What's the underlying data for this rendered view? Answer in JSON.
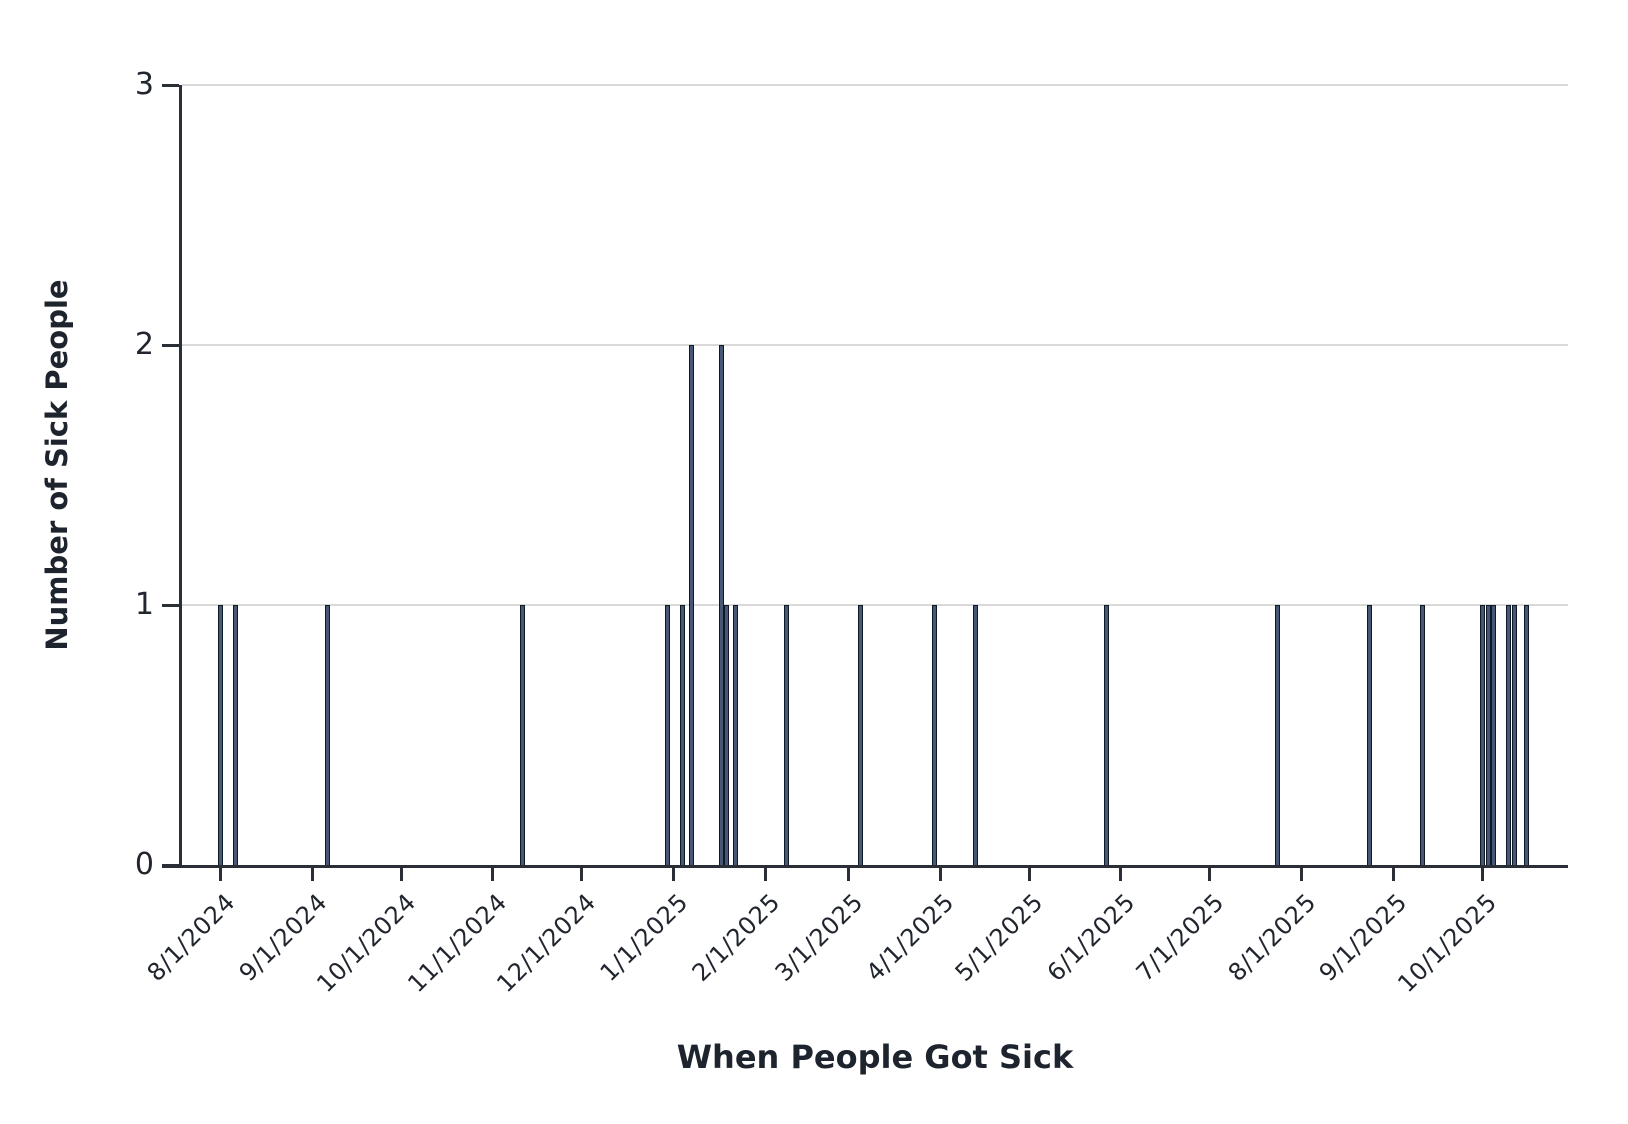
{
  "chart_data": {
    "type": "bar",
    "title": "",
    "xlabel": "When People Got Sick",
    "ylabel": "Number of Sick People",
    "ylim": [
      0,
      3
    ],
    "yticks": [
      0,
      1,
      2,
      3
    ],
    "grid": "horizontal-light-gray",
    "legend": "none",
    "x_axis_domain_start": "2024-07-19",
    "x_axis_domain_end": "2025-10-30",
    "xticks": [
      {
        "label": "8/1/2024",
        "date": "2024-08-01"
      },
      {
        "label": "9/1/2024",
        "date": "2024-09-01"
      },
      {
        "label": "10/1/2024",
        "date": "2024-10-01"
      },
      {
        "label": "11/1/2024",
        "date": "2024-11-01"
      },
      {
        "label": "12/1/2024",
        "date": "2024-12-01"
      },
      {
        "label": "1/1/2025",
        "date": "2025-01-01"
      },
      {
        "label": "2/1/2025",
        "date": "2025-02-01"
      },
      {
        "label": "3/1/2025",
        "date": "2025-03-01"
      },
      {
        "label": "4/1/2025",
        "date": "2025-04-01"
      },
      {
        "label": "5/1/2025",
        "date": "2025-05-01"
      },
      {
        "label": "6/1/2025",
        "date": "2025-06-01"
      },
      {
        "label": "7/1/2025",
        "date": "2025-07-01"
      },
      {
        "label": "8/1/2025",
        "date": "2025-08-01"
      },
      {
        "label": "9/1/2025",
        "date": "2025-09-01"
      },
      {
        "label": "10/1/2025",
        "date": "2025-10-01"
      }
    ],
    "points": [
      {
        "date": "2024-08-01",
        "count": 1
      },
      {
        "date": "2024-08-06",
        "count": 1
      },
      {
        "date": "2024-09-06",
        "count": 1
      },
      {
        "date": "2024-11-11",
        "count": 1
      },
      {
        "date": "2024-12-30",
        "count": 1
      },
      {
        "date": "2025-01-04",
        "count": 1
      },
      {
        "date": "2025-01-07",
        "count": 2
      },
      {
        "date": "2025-01-17",
        "count": 2
      },
      {
        "date": "2025-01-19",
        "count": 1
      },
      {
        "date": "2025-01-22",
        "count": 1
      },
      {
        "date": "2025-02-08",
        "count": 1
      },
      {
        "date": "2025-03-05",
        "count": 1
      },
      {
        "date": "2025-03-30",
        "count": 1
      },
      {
        "date": "2025-04-13",
        "count": 1
      },
      {
        "date": "2025-05-27",
        "count": 1
      },
      {
        "date": "2025-07-24",
        "count": 1
      },
      {
        "date": "2025-08-24",
        "count": 1
      },
      {
        "date": "2025-09-11",
        "count": 1
      },
      {
        "date": "2025-10-01",
        "count": 1
      },
      {
        "date": "2025-10-03",
        "count": 1
      },
      {
        "date": "2025-10-05",
        "count": 1
      },
      {
        "date": "2025-10-10",
        "count": 1
      },
      {
        "date": "2025-10-12",
        "count": 1
      },
      {
        "date": "2025-10-16",
        "count": 1
      }
    ]
  },
  "colors": {
    "background": "#ffffff",
    "bar_fill": "#465873",
    "bar_stroke": "#0f1826",
    "axis": "#2a2e36",
    "gridline": "#d9d9d9",
    "tick_text": "#21262e",
    "title_text": "#1e242e"
  }
}
